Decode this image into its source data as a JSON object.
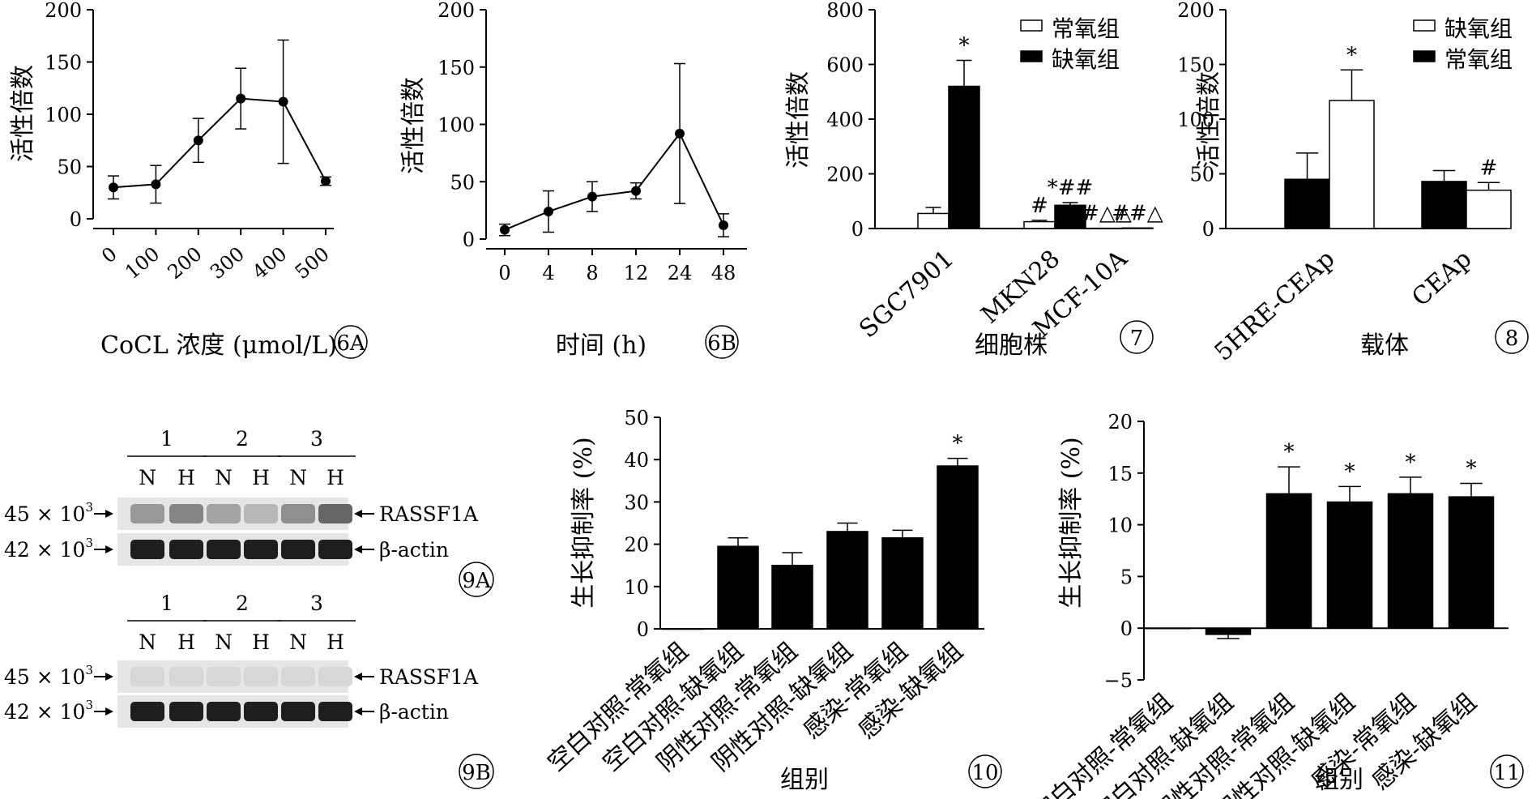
{
  "chart_data": [
    {
      "id": "6A",
      "type": "line",
      "ylabel": "活性倍数",
      "xlabel": "CoCL 浓度 (μmol/L)",
      "panel_label": "6A",
      "categories": [
        "0",
        "100",
        "200",
        "300",
        "400",
        "500"
      ],
      "yticks": [
        "0",
        "50",
        "100",
        "150",
        "200"
      ],
      "ylim": [
        0,
        200
      ],
      "series": [
        {
          "values": [
            30,
            33,
            75,
            115,
            112,
            36
          ],
          "errors": [
            11,
            18,
            21,
            29,
            59,
            4
          ]
        }
      ]
    },
    {
      "id": "6B",
      "type": "line",
      "ylabel": "活性倍数",
      "xlabel": "时间 (h)",
      "panel_label": "6B",
      "categories": [
        "0",
        "4",
        "8",
        "12",
        "24",
        "48"
      ],
      "yticks": [
        "0",
        "50",
        "100",
        "150",
        "200"
      ],
      "ylim": [
        0,
        200
      ],
      "series": [
        {
          "values": [
            8,
            24,
            37,
            42,
            92,
            12
          ],
          "errors": [
            5,
            18,
            13,
            7,
            61,
            10
          ]
        }
      ]
    },
    {
      "id": "7",
      "type": "bar",
      "ylabel": "活性倍数",
      "xlabel": "细胞株",
      "panel_label": "7",
      "categories": [
        "SGC7901",
        "MKN28",
        "MCF-10A"
      ],
      "yticks": [
        "0",
        "200",
        "400",
        "600",
        "800"
      ],
      "ylim": [
        0,
        800
      ],
      "legend_position": "top-right",
      "series": [
        {
          "name": "常氧组",
          "fill": "#ffffff",
          "values": [
            55,
            25,
            1
          ],
          "errors": [
            22,
            5,
            0
          ]
        },
        {
          "name": "缺氧组",
          "fill": "#000000",
          "values": [
            520,
            85,
            2
          ],
          "errors": [
            95,
            10,
            0
          ]
        }
      ],
      "annotations": [
        {
          "category": 0,
          "series": 1,
          "text": "*"
        },
        {
          "category": 1,
          "series": 0,
          "text": "#"
        },
        {
          "category": 1,
          "series": 1,
          "text": "*##"
        },
        {
          "category": 2,
          "series": 0,
          "text": "#△△"
        },
        {
          "category": 2,
          "series": 1,
          "text": "##△"
        }
      ]
    },
    {
      "id": "8",
      "type": "bar",
      "ylabel": "活性倍数",
      "xlabel": "载体",
      "panel_label": "8",
      "categories": [
        "5HRE-CEAp",
        "CEAp"
      ],
      "yticks": [
        "0",
        "50",
        "100",
        "150",
        "200"
      ],
      "ylim": [
        0,
        200
      ],
      "legend_position": "top-right",
      "legend": [
        {
          "name": "缺氧组",
          "fill": "#ffffff"
        },
        {
          "name": "常氧组",
          "fill": "#000000"
        }
      ],
      "series": [
        {
          "fill": "#000000",
          "values": [
            45,
            43
          ],
          "errors": [
            24,
            10
          ]
        },
        {
          "fill": "#ffffff",
          "values": [
            117,
            35
          ],
          "errors": [
            28,
            7
          ]
        }
      ],
      "annotations": [
        {
          "category": 0,
          "series": 1,
          "text": "*"
        },
        {
          "category": 1,
          "series": 1,
          "text": "#"
        }
      ]
    },
    {
      "id": "10",
      "type": "bar",
      "ylabel": "生长抑制率 (%)",
      "xlabel": "组别",
      "panel_label": "10",
      "categories": [
        "空白对照-常氧组",
        "空白对照-缺氧组",
        "阴性对照-常氧组",
        "阴性对照-缺氧组",
        "感染-常氧组",
        "感染-缺氧组"
      ],
      "yticks": [
        "0",
        "10",
        "20",
        "30",
        "40",
        "50"
      ],
      "ylim": [
        0,
        50
      ],
      "series": [
        {
          "fill": "#000000",
          "values": [
            0,
            19.5,
            15,
            23,
            21.5,
            38.5
          ],
          "errors": [
            0,
            2,
            3,
            2,
            1.8,
            1.8
          ]
        }
      ],
      "annotations": [
        {
          "category": 5,
          "text": "*"
        }
      ]
    },
    {
      "id": "11",
      "type": "bar",
      "ylabel": "生长抑制率 (%)",
      "xlabel": "组别",
      "panel_label": "11",
      "categories": [
        "空白对照-常氧组",
        "空白对照-缺氧组",
        "阴性对照-常氧组",
        "阴性对照-缺氧组",
        "感染-常氧组",
        "感染-缺氧组"
      ],
      "yticks": [
        "−5",
        "0",
        "5",
        "10",
        "15",
        "20"
      ],
      "ylim": [
        -5,
        20
      ],
      "series": [
        {
          "fill": "#000000",
          "values": [
            0,
            -0.6,
            13,
            12.2,
            13,
            12.7
          ],
          "errors": [
            0,
            0.4,
            2.6,
            1.5,
            1.6,
            1.3
          ]
        }
      ],
      "annotations": [
        {
          "category": 2,
          "text": "*"
        },
        {
          "category": 3,
          "text": "*"
        },
        {
          "category": 4,
          "text": "*"
        },
        {
          "category": 5,
          "text": "*"
        }
      ]
    }
  ],
  "western_blots": [
    {
      "id": "9A",
      "panel_label": "9A",
      "groups": [
        "1",
        "2",
        "3"
      ],
      "lanes": [
        "N",
        "H",
        "N",
        "H",
        "N",
        "H"
      ],
      "rows": [
        {
          "left_label": "45 × 10",
          "left_sup": "3",
          "right_label": "RASSF1A",
          "band_intensity": [
            0.35,
            0.45,
            0.3,
            0.2,
            0.4,
            0.6
          ]
        },
        {
          "left_label": "42 × 10",
          "left_sup": "3",
          "right_label": "β-actin",
          "band_intensity": [
            0.95,
            0.95,
            0.95,
            0.95,
            0.95,
            0.95
          ]
        }
      ]
    },
    {
      "id": "9B",
      "panel_label": "9B",
      "groups": [
        "1",
        "2",
        "3"
      ],
      "lanes": [
        "N",
        "H",
        "N",
        "H",
        "N",
        "H"
      ],
      "rows": [
        {
          "left_label": "45 × 10",
          "left_sup": "3",
          "right_label": "RASSF1A",
          "band_intensity": [
            0.05,
            0.05,
            0.05,
            0.05,
            0.05,
            0.05
          ]
        },
        {
          "left_label": "42 × 10",
          "left_sup": "3",
          "right_label": "β-actin",
          "band_intensity": [
            0.95,
            0.95,
            0.95,
            0.95,
            0.95,
            0.95
          ]
        }
      ]
    }
  ]
}
